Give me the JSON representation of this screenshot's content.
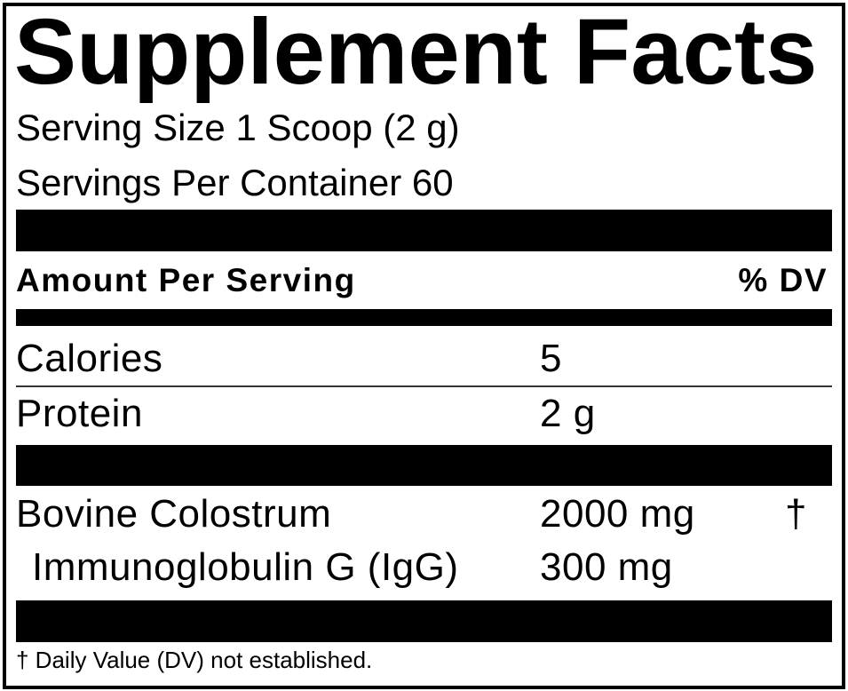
{
  "label": {
    "title": "Supplement Facts",
    "serving_size": "Serving Size 1 Scoop (2 g)",
    "servings_per_container": "Servings Per Container 60",
    "header": {
      "amount": "Amount Per Serving",
      "dv": "% DV"
    },
    "nutrients": [
      {
        "name": "Calories",
        "amount": "5",
        "dv": ""
      },
      {
        "name": "Protein",
        "amount": "2 g",
        "dv": ""
      }
    ],
    "ingredients": [
      {
        "name": "Bovine Colostrum",
        "amount": "2000 mg",
        "dv": "†"
      },
      {
        "name": "Immunoglobulin G (IgG)",
        "amount": "300 mg",
        "dv": ""
      }
    ],
    "footnote": "† Daily Value (DV) not established."
  }
}
